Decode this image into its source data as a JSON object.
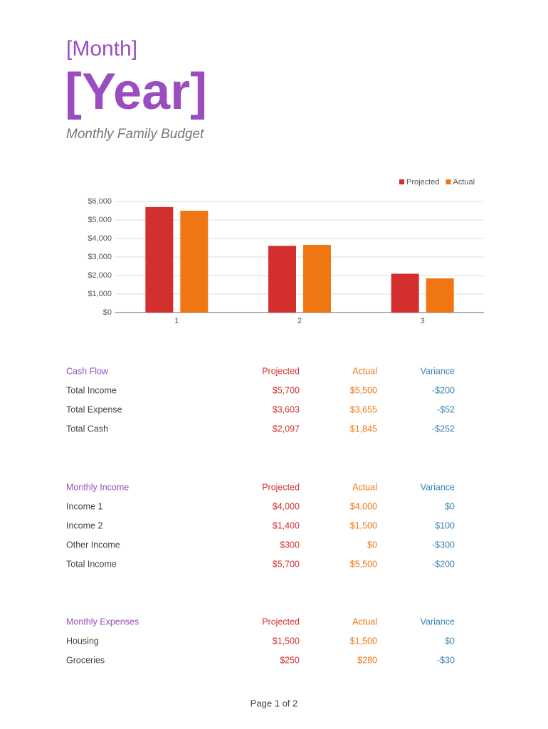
{
  "header": {
    "month": "[Month]",
    "year": "[Year]",
    "subtitle": "Monthly Family Budget"
  },
  "chart_data": {
    "type": "bar",
    "categories": [
      "1",
      "2",
      "3"
    ],
    "series": [
      {
        "name": "Projected",
        "color": "#d32f2f",
        "values": [
          5700,
          3603,
          2097
        ]
      },
      {
        "name": "Actual",
        "color": "#f07614",
        "values": [
          5500,
          3655,
          1845
        ]
      }
    ],
    "ylim": [
      0,
      6000
    ],
    "yticks": [
      {
        "value": 0,
        "label": "$0"
      },
      {
        "value": 1000,
        "label": "$1,000"
      },
      {
        "value": 2000,
        "label": "$2,000"
      },
      {
        "value": 3000,
        "label": "$3,000"
      },
      {
        "value": 4000,
        "label": "$4,000"
      },
      {
        "value": 5000,
        "label": "$5,000"
      },
      {
        "value": 6000,
        "label": "$6,000"
      }
    ],
    "grid": true,
    "legend": "top-right"
  },
  "tables": [
    {
      "header": [
        "Cash Flow",
        "Projected",
        "Actual",
        "Variance"
      ],
      "rows": [
        [
          "Total Income",
          "$5,700",
          "$5,500",
          "-$200"
        ],
        [
          "Total Expense",
          "$3,603",
          "$3,655",
          "-$52"
        ],
        [
          "Total Cash",
          "$2,097",
          "$1,845",
          "-$252"
        ]
      ]
    },
    {
      "header": [
        "Monthly Income",
        "Projected",
        "Actual",
        "Variance"
      ],
      "rows": [
        [
          "Income 1",
          "$4,000",
          "$4,000",
          "$0"
        ],
        [
          "Income 2",
          "$1,400",
          "$1,500",
          "$100"
        ],
        [
          "Other Income",
          "$300",
          "$0",
          "-$300"
        ],
        [
          "Total Income",
          "$5,700",
          "$5,500",
          "-$200"
        ]
      ]
    },
    {
      "header": [
        "Monthly Expenses",
        "Projected",
        "Actual",
        "Variance"
      ],
      "rows": [
        [
          "Housing",
          "$1,500",
          "$1,500",
          "$0"
        ],
        [
          "Groceries",
          "$250",
          "$280",
          "-$30"
        ]
      ]
    }
  ],
  "footer": "Page 1 of 2"
}
